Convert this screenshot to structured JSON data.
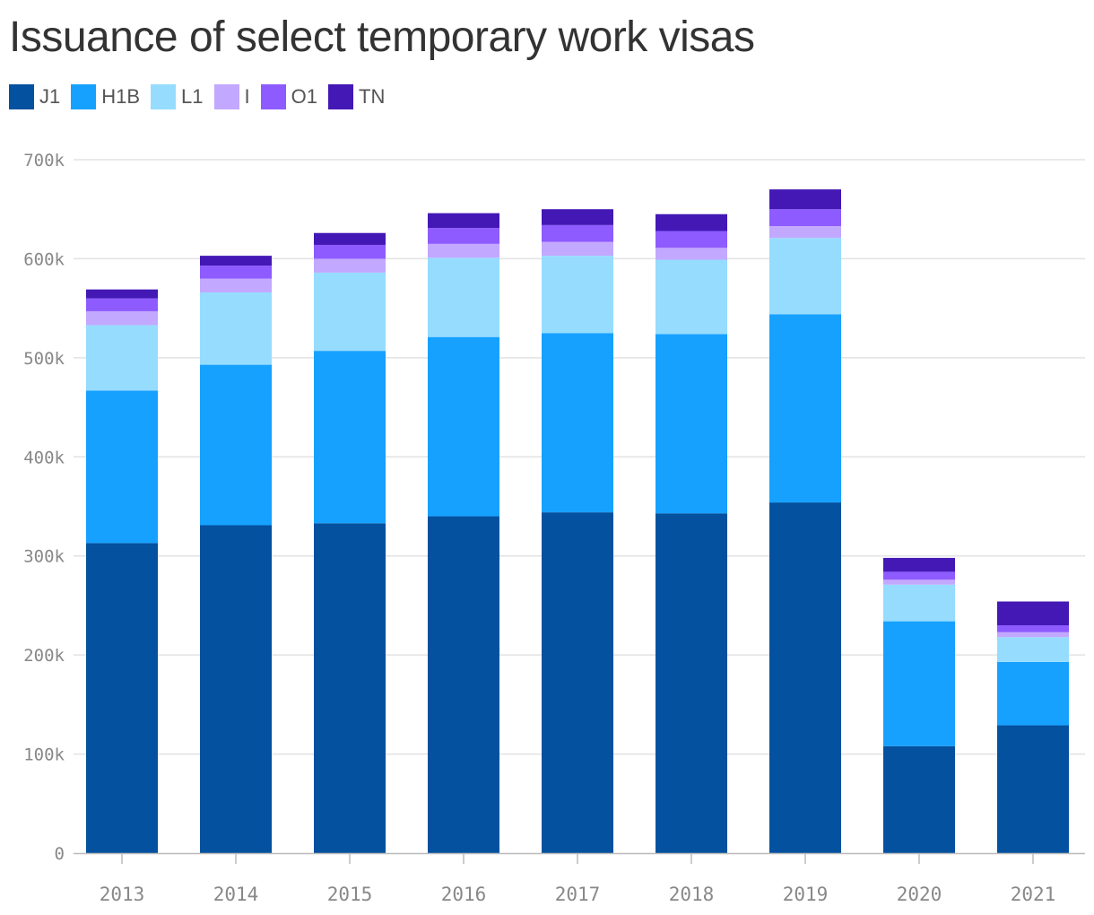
{
  "chart_data": {
    "type": "bar",
    "stacked": true,
    "title": "Issuance of select temporary work visas",
    "xlabel": "",
    "ylabel": "",
    "ylim": [
      0,
      700000
    ],
    "y_ticks": [
      0,
      100000,
      200000,
      300000,
      400000,
      500000,
      600000,
      700000
    ],
    "y_tick_labels": [
      "0",
      "100k",
      "200k",
      "300k",
      "400k",
      "500k",
      "600k",
      "700k"
    ],
    "grid": true,
    "legend_position": "top-left",
    "categories": [
      "2013",
      "2014",
      "2015",
      "2016",
      "2017",
      "2018",
      "2019",
      "2020",
      "2021"
    ],
    "series": [
      {
        "name": "J1",
        "color": "#03519f",
        "values": [
          313000,
          331000,
          333000,
          340000,
          344000,
          343000,
          354000,
          108000,
          129000
        ]
      },
      {
        "name": "H1B",
        "color": "#16a1ff",
        "values": [
          154000,
          162000,
          174000,
          181000,
          181000,
          181000,
          190000,
          126000,
          64000
        ]
      },
      {
        "name": "L1",
        "color": "#96dcff",
        "values": [
          66000,
          73000,
          79000,
          80000,
          78000,
          75000,
          77000,
          37000,
          25000
        ]
      },
      {
        "name": "I",
        "color": "#c2a8ff",
        "values": [
          14000,
          14000,
          14000,
          14000,
          14000,
          12000,
          12000,
          5000,
          5000
        ]
      },
      {
        "name": "O1",
        "color": "#8d5bff",
        "values": [
          13000,
          13000,
          14000,
          16000,
          17000,
          17000,
          17000,
          8000,
          7000
        ]
      },
      {
        "name": "TN",
        "color": "#4318b5",
        "values": [
          9000,
          10000,
          12000,
          15000,
          16000,
          17000,
          20000,
          14000,
          24000
        ]
      }
    ]
  }
}
